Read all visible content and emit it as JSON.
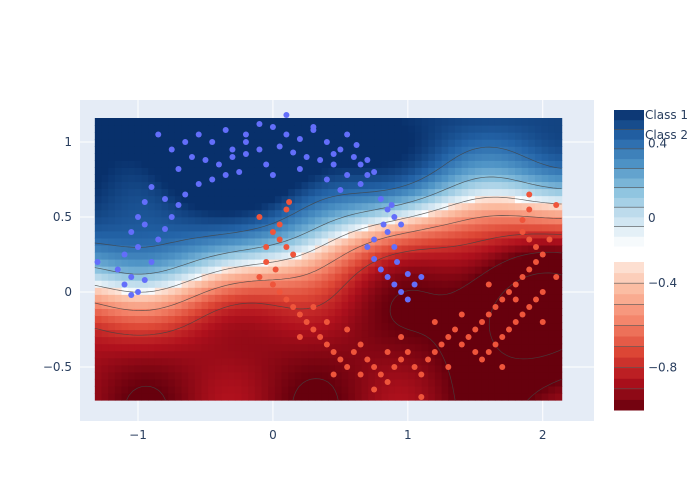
{
  "chart_data": {
    "type": "contour",
    "title": "",
    "xlabel": "",
    "ylabel": "",
    "xlim": [
      -1.43,
      2.38
    ],
    "ylim": [
      -0.86,
      1.28
    ],
    "x_ticks": [
      -1,
      0,
      1,
      2
    ],
    "y_ticks": [
      -0.5,
      0,
      0.5,
      1
    ],
    "x_tick_labels": [
      "−1",
      "0",
      "1",
      "2"
    ],
    "y_tick_labels": [
      "−0.5",
      "0",
      "0.5",
      "1"
    ],
    "grid": true,
    "legend": {
      "placement": "top-right",
      "entries": [
        "Class 1",
        "Class 2"
      ]
    },
    "colorbars": [
      {
        "name": "positive",
        "range": [
          -0.15,
          0.58
        ],
        "ticks": [
          0,
          0.4
        ],
        "tick_labels": [
          "0",
          "0.4"
        ],
        "colors": [
          "#ffffff",
          "#cce3f0",
          "#8ec4df",
          "#4f94c6",
          "#2464a8",
          "#08306b"
        ]
      },
      {
        "name": "negative",
        "range": [
          -1.0,
          -0.3
        ],
        "ticks": [
          -0.4,
          -0.8
        ],
        "tick_labels": [
          "−0.4",
          "−0.8"
        ],
        "colors": [
          "#fde7dc",
          "#fbb89c",
          "#f4846a",
          "#de4836",
          "#b0111d",
          "#67000d"
        ]
      }
    ],
    "field_extent": {
      "x": [
        -1.32,
        2.14
      ],
      "y": [
        -0.72,
        1.16
      ]
    },
    "series": [
      {
        "name": "Class 1",
        "color": "#636efa",
        "points": [
          [
            -0.85,
            1.05
          ],
          [
            -0.75,
            0.95
          ],
          [
            -0.65,
            1.0
          ],
          [
            -0.55,
            1.05
          ],
          [
            -0.45,
            1.0
          ],
          [
            -0.35,
            1.08
          ],
          [
            -0.3,
            0.95
          ],
          [
            -0.2,
            1.05
          ],
          [
            -0.1,
            1.12
          ],
          [
            0.0,
            1.1
          ],
          [
            0.1,
            1.05
          ],
          [
            0.2,
            1.02
          ],
          [
            0.3,
            1.08
          ],
          [
            0.4,
            1.0
          ],
          [
            0.5,
            0.95
          ],
          [
            0.55,
            1.05
          ],
          [
            0.6,
            0.9
          ],
          [
            0.65,
            0.85
          ],
          [
            0.7,
            0.78
          ],
          [
            0.75,
            0.8
          ],
          [
            -0.6,
            0.9
          ],
          [
            -0.5,
            0.88
          ],
          [
            -0.4,
            0.85
          ],
          [
            -0.3,
            0.9
          ],
          [
            -0.2,
            0.92
          ],
          [
            -0.1,
            0.95
          ],
          [
            0.05,
            0.97
          ],
          [
            0.15,
            0.93
          ],
          [
            0.25,
            0.9
          ],
          [
            0.35,
            0.88
          ],
          [
            0.45,
            0.85
          ],
          [
            0.55,
            0.78
          ],
          [
            0.65,
            0.72
          ],
          [
            0.8,
            0.62
          ],
          [
            0.85,
            0.55
          ],
          [
            0.9,
            0.5
          ],
          [
            0.95,
            0.45
          ],
          [
            0.85,
            0.4
          ],
          [
            0.75,
            0.35
          ],
          [
            0.7,
            0.3
          ],
          [
            0.75,
            0.22
          ],
          [
            0.8,
            0.15
          ],
          [
            0.85,
            0.1
          ],
          [
            0.9,
            0.05
          ],
          [
            0.95,
            0.0
          ],
          [
            1.0,
            -0.05
          ],
          [
            1.05,
            0.05
          ],
          [
            1.1,
            0.1
          ],
          [
            0.9,
            0.3
          ],
          [
            0.82,
            0.45
          ],
          [
            -0.9,
            0.7
          ],
          [
            -0.95,
            0.6
          ],
          [
            -1.0,
            0.5
          ],
          [
            -1.05,
            0.4
          ],
          [
            -1.0,
            0.3
          ],
          [
            -1.1,
            0.25
          ],
          [
            -1.15,
            0.15
          ],
          [
            -1.05,
            0.1
          ],
          [
            -1.1,
            0.05
          ],
          [
            -1.0,
            0.0
          ],
          [
            -0.95,
            0.08
          ],
          [
            -0.9,
            0.2
          ],
          [
            -0.85,
            0.35
          ],
          [
            -0.8,
            0.42
          ],
          [
            -0.75,
            0.5
          ],
          [
            -0.7,
            0.58
          ],
          [
            -0.65,
            0.65
          ],
          [
            -0.55,
            0.72
          ],
          [
            -0.45,
            0.75
          ],
          [
            -0.35,
            0.78
          ],
          [
            -1.3,
            0.2
          ],
          [
            -1.05,
            -0.02
          ],
          [
            -0.95,
            0.45
          ],
          [
            -0.8,
            0.62
          ],
          [
            -0.7,
            0.82
          ],
          [
            -0.2,
            1.0
          ],
          [
            0.1,
            1.18
          ],
          [
            0.45,
            0.92
          ],
          [
            0.62,
            0.98
          ],
          [
            0.7,
            0.88
          ],
          [
            0.3,
            1.1
          ],
          [
            -0.05,
            0.85
          ],
          [
            0.2,
            0.82
          ],
          [
            0.4,
            0.75
          ],
          [
            0.0,
            0.78
          ],
          [
            -0.25,
            0.8
          ],
          [
            0.5,
            0.68
          ],
          [
            1.0,
            0.12
          ],
          [
            0.92,
            0.2
          ],
          [
            0.88,
            0.58
          ]
        ]
      },
      {
        "name": "Class 2",
        "color": "#ef553b",
        "points": [
          [
            0.0,
            0.4
          ],
          [
            0.05,
            0.35
          ],
          [
            0.1,
            0.3
          ],
          [
            0.15,
            0.25
          ],
          [
            -0.05,
            0.2
          ],
          [
            -0.1,
            0.1
          ],
          [
            0.0,
            0.05
          ],
          [
            0.05,
            0.0
          ],
          [
            0.1,
            -0.05
          ],
          [
            0.15,
            -0.1
          ],
          [
            0.2,
            -0.15
          ],
          [
            0.25,
            -0.2
          ],
          [
            0.3,
            -0.25
          ],
          [
            0.35,
            -0.3
          ],
          [
            0.4,
            -0.35
          ],
          [
            0.45,
            -0.4
          ],
          [
            0.5,
            -0.45
          ],
          [
            0.55,
            -0.5
          ],
          [
            0.6,
            -0.4
          ],
          [
            0.65,
            -0.35
          ],
          [
            0.7,
            -0.45
          ],
          [
            0.75,
            -0.5
          ],
          [
            0.8,
            -0.55
          ],
          [
            0.85,
            -0.6
          ],
          [
            0.9,
            -0.5
          ],
          [
            0.95,
            -0.45
          ],
          [
            1.0,
            -0.4
          ],
          [
            1.05,
            -0.5
          ],
          [
            1.1,
            -0.55
          ],
          [
            1.15,
            -0.45
          ],
          [
            1.2,
            -0.4
          ],
          [
            1.25,
            -0.35
          ],
          [
            1.3,
            -0.3
          ],
          [
            1.35,
            -0.25
          ],
          [
            1.4,
            -0.35
          ],
          [
            1.45,
            -0.3
          ],
          [
            1.5,
            -0.25
          ],
          [
            1.55,
            -0.2
          ],
          [
            1.6,
            -0.15
          ],
          [
            1.65,
            -0.1
          ],
          [
            1.7,
            -0.05
          ],
          [
            1.75,
            0.0
          ],
          [
            1.8,
            0.05
          ],
          [
            1.85,
            0.1
          ],
          [
            1.9,
            0.15
          ],
          [
            1.95,
            0.2
          ],
          [
            2.0,
            0.25
          ],
          [
            1.95,
            0.3
          ],
          [
            1.9,
            0.35
          ],
          [
            1.85,
            0.4
          ],
          [
            2.0,
            0.0
          ],
          [
            1.95,
            -0.05
          ],
          [
            1.9,
            -0.1
          ],
          [
            1.85,
            -0.15
          ],
          [
            1.8,
            -0.2
          ],
          [
            1.75,
            -0.25
          ],
          [
            1.7,
            -0.3
          ],
          [
            1.65,
            -0.35
          ],
          [
            1.6,
            -0.4
          ],
          [
            1.55,
            -0.45
          ],
          [
            0.1,
            0.55
          ],
          [
            0.12,
            0.6
          ],
          [
            -0.1,
            0.5
          ],
          [
            0.05,
            0.45
          ],
          [
            -0.05,
            0.3
          ],
          [
            0.02,
            0.15
          ],
          [
            0.2,
            -0.3
          ],
          [
            0.3,
            -0.1
          ],
          [
            0.4,
            -0.2
          ],
          [
            0.55,
            -0.25
          ],
          [
            0.65,
            -0.55
          ],
          [
            0.75,
            -0.65
          ],
          [
            0.85,
            -0.4
          ],
          [
            1.1,
            -0.7
          ],
          [
            1.3,
            -0.5
          ],
          [
            1.5,
            -0.4
          ],
          [
            1.7,
            -0.5
          ],
          [
            2.1,
            0.58
          ],
          [
            1.9,
            0.65
          ],
          [
            1.85,
            0.48
          ],
          [
            2.05,
            0.35
          ],
          [
            2.1,
            0.1
          ],
          [
            2.0,
            -0.2
          ],
          [
            1.8,
            -0.05
          ],
          [
            1.6,
            0.05
          ],
          [
            1.4,
            -0.15
          ],
          [
            1.2,
            -0.2
          ],
          [
            0.95,
            -0.3
          ],
          [
            0.45,
            -0.55
          ],
          [
            1.9,
            0.55
          ]
        ]
      }
    ]
  }
}
